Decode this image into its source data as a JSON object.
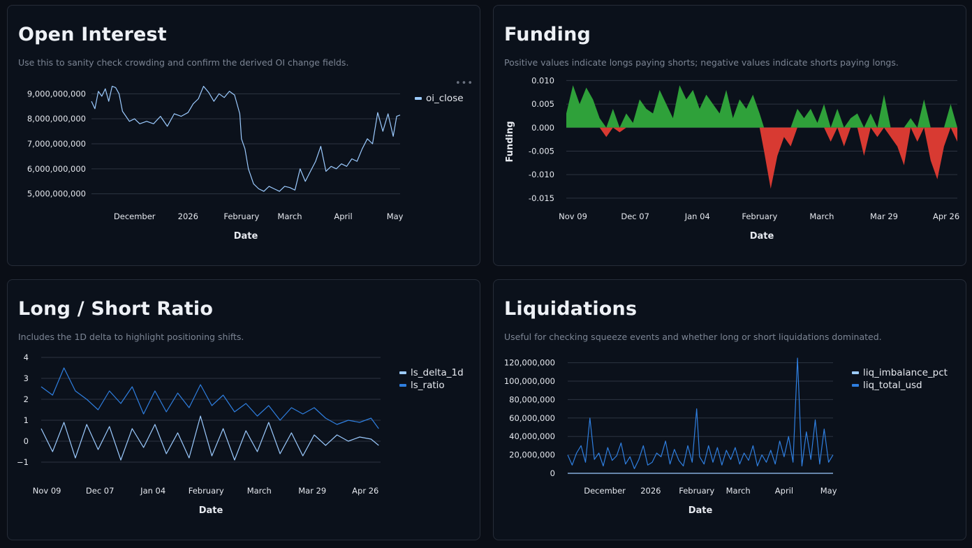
{
  "colors": {
    "background": "#0a0e16",
    "panel": "#0b111b",
    "grid": "#2d3441",
    "line_light": "#9ccbff",
    "line_blue": "#2f7fe0",
    "funding_pos": "#2fa13a",
    "funding_neg": "#d83a32"
  },
  "panels": {
    "oi": {
      "title": "Open Interest",
      "subtitle": "Use this to sanity check crowding and confirm the derived OI change fields.",
      "menu": "•••"
    },
    "funding": {
      "title": "Funding",
      "subtitle": "Positive values indicate longs paying shorts; negative values indicate shorts paying longs."
    },
    "ls": {
      "title": "Long / Short Ratio",
      "subtitle": "Includes the 1D delta to highlight positioning shifts."
    },
    "liq": {
      "title": "Liquidations",
      "subtitle": "Useful for checking squeeze events and whether long or short liquidations dominated."
    }
  },
  "chart_data": [
    {
      "id": "oi",
      "type": "line",
      "title": "",
      "xlabel": "Date",
      "ylabel": "",
      "x_range": [
        "2025-11-06",
        "2026-05-04"
      ],
      "ylim": [
        4600000000,
        9400000000
      ],
      "grid": "horizontal",
      "legend_position": "right",
      "yticks": [
        {
          "v": 5000000000,
          "label": "5,000,000,000"
        },
        {
          "v": 6000000000,
          "label": "6,000,000,000"
        },
        {
          "v": 7000000000,
          "label": "7,000,000,000"
        },
        {
          "v": 8000000000,
          "label": "8,000,000,000"
        },
        {
          "v": 9000000000,
          "label": "9,000,000,000"
        }
      ],
      "xticks": [
        {
          "date": "2025-12-01",
          "label": "December"
        },
        {
          "date": "2026-01-01",
          "label": "2026"
        },
        {
          "date": "2026-02-01",
          "label": "February"
        },
        {
          "date": "2026-03-01",
          "label": "March"
        },
        {
          "date": "2026-04-01",
          "label": "April"
        },
        {
          "date": "2026-05-01",
          "label": "May"
        }
      ],
      "series": [
        {
          "name": "oi_close",
          "color": "#9ccbff",
          "dates": [
            "2025-11-06",
            "2025-11-08",
            "2025-11-10",
            "2025-11-12",
            "2025-11-14",
            "2025-11-16",
            "2025-11-18",
            "2025-11-20",
            "2025-11-22",
            "2025-11-24",
            "2025-11-26",
            "2025-11-28",
            "2025-12-01",
            "2025-12-04",
            "2025-12-08",
            "2025-12-12",
            "2025-12-16",
            "2025-12-20",
            "2025-12-24",
            "2025-12-28",
            "2026-01-01",
            "2026-01-04",
            "2026-01-07",
            "2026-01-10",
            "2026-01-13",
            "2026-01-16",
            "2026-01-19",
            "2026-01-22",
            "2026-01-25",
            "2026-01-28",
            "2026-01-31",
            "2026-02-01",
            "2026-02-03",
            "2026-02-05",
            "2026-02-08",
            "2026-02-11",
            "2026-02-14",
            "2026-02-17",
            "2026-02-20",
            "2026-02-23",
            "2026-02-26",
            "2026-03-01",
            "2026-03-04",
            "2026-03-07",
            "2026-03-10",
            "2026-03-13",
            "2026-03-16",
            "2026-03-19",
            "2026-03-22",
            "2026-03-25",
            "2026-03-28",
            "2026-03-31",
            "2026-04-03",
            "2026-04-06",
            "2026-04-09",
            "2026-04-12",
            "2026-04-15",
            "2026-04-18",
            "2026-04-21",
            "2026-04-24",
            "2026-04-27",
            "2026-04-30",
            "2026-05-02",
            "2026-05-04"
          ],
          "values": [
            8700000000,
            8400000000,
            9100000000,
            8900000000,
            9200000000,
            8700000000,
            9300000000,
            9250000000,
            9000000000,
            8300000000,
            8100000000,
            7900000000,
            8000000000,
            7800000000,
            7900000000,
            7800000000,
            8100000000,
            7700000000,
            8200000000,
            8100000000,
            8250000000,
            8600000000,
            8800000000,
            9300000000,
            9050000000,
            8700000000,
            9000000000,
            8850000000,
            9100000000,
            8950000000,
            8200000000,
            7200000000,
            6800000000,
            6000000000,
            5400000000,
            5200000000,
            5100000000,
            5300000000,
            5200000000,
            5100000000,
            5300000000,
            5250000000,
            5150000000,
            6000000000,
            5500000000,
            5900000000,
            6300000000,
            6900000000,
            5900000000,
            6100000000,
            6000000000,
            6200000000,
            6100000000,
            6400000000,
            6300000000,
            6800000000,
            7200000000,
            7000000000,
            8250000000,
            7500000000,
            8200000000,
            7300000000,
            8100000000,
            8150000000
          ]
        }
      ]
    },
    {
      "id": "funding",
      "type": "area",
      "title": "",
      "xlabel": "Date",
      "ylabel": "Funding",
      "x_range": [
        "2025-11-06",
        "2026-05-01"
      ],
      "ylim": [
        -0.0165,
        0.0105
      ],
      "grid": "horizontal",
      "yticks": [
        {
          "v": -0.015,
          "label": "-0.015"
        },
        {
          "v": -0.01,
          "label": "-0.010"
        },
        {
          "v": -0.005,
          "label": "-0.005"
        },
        {
          "v": 0,
          "label": "0.000"
        },
        {
          "v": 0.005,
          "label": "0.005"
        },
        {
          "v": 0.01,
          "label": "0.010"
        }
      ],
      "xticks": [
        {
          "date": "2025-11-09",
          "label": "Nov 09"
        },
        {
          "date": "2025-12-07",
          "label": "Dec 07"
        },
        {
          "date": "2026-01-04",
          "label": "Jan 04"
        },
        {
          "date": "2026-02-01",
          "label": "February"
        },
        {
          "date": "2026-03-01",
          "label": "March"
        },
        {
          "date": "2026-03-29",
          "label": "Mar 29"
        },
        {
          "date": "2026-04-26",
          "label": "Apr 26"
        }
      ],
      "series": [
        {
          "name": "funding",
          "dates": [
            "2025-11-06",
            "2025-11-09",
            "2025-11-12",
            "2025-11-15",
            "2025-11-18",
            "2025-11-21",
            "2025-11-24",
            "2025-11-27",
            "2025-11-30",
            "2025-12-03",
            "2025-12-06",
            "2025-12-09",
            "2025-12-12",
            "2025-12-15",
            "2025-12-18",
            "2025-12-21",
            "2025-12-24",
            "2025-12-27",
            "2025-12-30",
            "2026-01-02",
            "2026-01-05",
            "2026-01-08",
            "2026-01-11",
            "2026-01-14",
            "2026-01-17",
            "2026-01-20",
            "2026-01-23",
            "2026-01-26",
            "2026-01-29",
            "2026-02-01",
            "2026-02-03",
            "2026-02-06",
            "2026-02-09",
            "2026-02-12",
            "2026-02-15",
            "2026-02-18",
            "2026-02-21",
            "2026-02-24",
            "2026-02-27",
            "2026-03-02",
            "2026-03-05",
            "2026-03-08",
            "2026-03-11",
            "2026-03-14",
            "2026-03-17",
            "2026-03-20",
            "2026-03-23",
            "2026-03-26",
            "2026-03-29",
            "2026-04-01",
            "2026-04-04",
            "2026-04-07",
            "2026-04-10",
            "2026-04-13",
            "2026-04-16",
            "2026-04-19",
            "2026-04-22",
            "2026-04-25",
            "2026-04-28",
            "2026-05-01"
          ],
          "values": [
            0.003,
            0.009,
            0.005,
            0.0085,
            0.006,
            0.002,
            -0.002,
            0.004,
            -0.001,
            0.003,
            0.001,
            0.006,
            0.004,
            0.003,
            0.008,
            0.005,
            0.002,
            0.009,
            0.006,
            0.008,
            0.004,
            0.007,
            0.005,
            0.003,
            0.008,
            0.002,
            0.006,
            0.004,
            0.007,
            0.003,
            -0.005,
            -0.013,
            -0.006,
            -0.002,
            -0.004,
            0.004,
            0.002,
            0.004,
            0.001,
            0.005,
            -0.003,
            0.004,
            -0.004,
            0.002,
            0.003,
            -0.006,
            0.003,
            -0.002,
            0.007,
            -0.002,
            -0.004,
            -0.008,
            0.002,
            -0.003,
            0.006,
            -0.007,
            -0.011,
            -0.004,
            0.005,
            -0.003
          ]
        }
      ]
    },
    {
      "id": "ls",
      "type": "line",
      "title": "",
      "xlabel": "Date",
      "ylabel": "",
      "x_range": [
        "2025-11-06",
        "2026-05-04"
      ],
      "ylim": [
        -1.4,
        4.3
      ],
      "grid": "horizontal",
      "legend_position": "right",
      "yticks": [
        {
          "v": -1,
          "label": "−1"
        },
        {
          "v": 0,
          "label": "0"
        },
        {
          "v": 1,
          "label": "1"
        },
        {
          "v": 2,
          "label": "2"
        },
        {
          "v": 3,
          "label": "3"
        },
        {
          "v": 4,
          "label": "4"
        }
      ],
      "xticks": [
        {
          "date": "2025-11-09",
          "label": "Nov 09"
        },
        {
          "date": "2025-12-07",
          "label": "Dec 07"
        },
        {
          "date": "2026-01-04",
          "label": "Jan 04"
        },
        {
          "date": "2026-02-01",
          "label": "February"
        },
        {
          "date": "2026-03-01",
          "label": "March"
        },
        {
          "date": "2026-03-29",
          "label": "Mar 29"
        },
        {
          "date": "2026-04-26",
          "label": "Apr 26"
        }
      ],
      "series": [
        {
          "name": "ls_delta_1d",
          "color": "#9ccbff",
          "dates": [
            "2025-11-06",
            "2025-11-12",
            "2025-11-18",
            "2025-11-24",
            "2025-11-30",
            "2025-12-06",
            "2025-12-12",
            "2025-12-18",
            "2025-12-24",
            "2025-12-30",
            "2026-01-05",
            "2026-01-11",
            "2026-01-17",
            "2026-01-23",
            "2026-01-29",
            "2026-02-04",
            "2026-02-10",
            "2026-02-16",
            "2026-02-22",
            "2026-02-28",
            "2026-03-06",
            "2026-03-12",
            "2026-03-18",
            "2026-03-24",
            "2026-03-30",
            "2026-04-05",
            "2026-04-11",
            "2026-04-17",
            "2026-04-23",
            "2026-04-29",
            "2026-05-03"
          ],
          "values": [
            0.6,
            -0.5,
            0.9,
            -0.8,
            0.8,
            -0.4,
            0.7,
            -0.9,
            0.6,
            -0.3,
            0.8,
            -0.6,
            0.4,
            -0.8,
            1.2,
            -0.7,
            0.6,
            -0.9,
            0.5,
            -0.5,
            0.9,
            -0.6,
            0.4,
            -0.7,
            0.3,
            -0.2,
            0.3,
            0.0,
            0.2,
            0.1,
            -0.2
          ]
        },
        {
          "name": "ls_ratio",
          "color": "#2f7fe0",
          "dates": [
            "2025-11-06",
            "2025-11-12",
            "2025-11-18",
            "2025-11-24",
            "2025-11-30",
            "2025-12-06",
            "2025-12-12",
            "2025-12-18",
            "2025-12-24",
            "2025-12-30",
            "2026-01-05",
            "2026-01-11",
            "2026-01-17",
            "2026-01-23",
            "2026-01-29",
            "2026-02-04",
            "2026-02-10",
            "2026-02-16",
            "2026-02-22",
            "2026-02-28",
            "2026-03-06",
            "2026-03-12",
            "2026-03-18",
            "2026-03-24",
            "2026-03-30",
            "2026-04-05",
            "2026-04-11",
            "2026-04-17",
            "2026-04-23",
            "2026-04-29",
            "2026-05-03"
          ],
          "values": [
            2.6,
            2.2,
            3.5,
            2.4,
            2.0,
            1.5,
            2.4,
            1.8,
            2.6,
            1.3,
            2.4,
            1.4,
            2.3,
            1.6,
            2.7,
            1.7,
            2.2,
            1.4,
            1.8,
            1.2,
            1.7,
            1.0,
            1.6,
            1.3,
            1.6,
            1.1,
            0.8,
            1.0,
            0.9,
            1.1,
            0.6
          ]
        }
      ]
    },
    {
      "id": "liq",
      "type": "line",
      "title": "",
      "xlabel": "Date",
      "ylabel": "",
      "x_range": [
        "2025-11-06",
        "2026-05-04"
      ],
      "ylim": [
        -3000000,
        128000000
      ],
      "grid": "horizontal",
      "legend_position": "right",
      "yticks": [
        {
          "v": 0,
          "label": "0"
        },
        {
          "v": 20000000,
          "label": "20,000,000"
        },
        {
          "v": 40000000,
          "label": "40,000,000"
        },
        {
          "v": 60000000,
          "label": "60,000,000"
        },
        {
          "v": 80000000,
          "label": "80,000,000"
        },
        {
          "v": 100000000,
          "label": "100,000,000"
        },
        {
          "v": 120000000,
          "label": "120,000,000"
        }
      ],
      "xticks": [
        {
          "date": "2025-12-01",
          "label": "December"
        },
        {
          "date": "2026-01-01",
          "label": "2026"
        },
        {
          "date": "2026-02-01",
          "label": "February"
        },
        {
          "date": "2026-03-01",
          "label": "March"
        },
        {
          "date": "2026-04-01",
          "label": "April"
        },
        {
          "date": "2026-05-01",
          "label": "May"
        }
      ],
      "series": [
        {
          "name": "liq_imbalance_pct",
          "color": "#9ccbff",
          "dates": [
            "2025-11-06",
            "2026-05-04"
          ],
          "values": [
            0,
            0
          ]
        },
        {
          "name": "liq_total_usd",
          "color": "#2f7fe0",
          "dates": [
            "2025-11-06",
            "2025-11-09",
            "2025-11-12",
            "2025-11-15",
            "2025-11-18",
            "2025-11-21",
            "2025-11-24",
            "2025-11-27",
            "2025-11-30",
            "2025-12-03",
            "2025-12-06",
            "2025-12-09",
            "2025-12-12",
            "2025-12-15",
            "2025-12-18",
            "2025-12-21",
            "2025-12-24",
            "2025-12-27",
            "2025-12-30",
            "2026-01-02",
            "2026-01-05",
            "2026-01-08",
            "2026-01-11",
            "2026-01-14",
            "2026-01-17",
            "2026-01-20",
            "2026-01-23",
            "2026-01-26",
            "2026-01-29",
            "2026-02-01",
            "2026-02-03",
            "2026-02-06",
            "2026-02-09",
            "2026-02-12",
            "2026-02-15",
            "2026-02-18",
            "2026-02-21",
            "2026-02-24",
            "2026-02-27",
            "2026-03-02",
            "2026-03-05",
            "2026-03-08",
            "2026-03-11",
            "2026-03-14",
            "2026-03-17",
            "2026-03-20",
            "2026-03-23",
            "2026-03-26",
            "2026-03-29",
            "2026-04-01",
            "2026-04-04",
            "2026-04-07",
            "2026-04-10",
            "2026-04-13",
            "2026-04-16",
            "2026-04-19",
            "2026-04-22",
            "2026-04-25",
            "2026-04-28",
            "2026-05-01",
            "2026-05-04"
          ],
          "values": [
            20000000,
            9000000,
            22000000,
            30000000,
            12000000,
            60000000,
            15000000,
            22000000,
            8000000,
            28000000,
            14000000,
            19000000,
            33000000,
            10000000,
            18000000,
            5000000,
            15000000,
            30000000,
            9000000,
            12000000,
            22000000,
            18000000,
            35000000,
            10000000,
            26000000,
            14000000,
            8000000,
            30000000,
            12000000,
            70000000,
            18000000,
            10000000,
            30000000,
            12000000,
            28000000,
            9000000,
            25000000,
            15000000,
            28000000,
            10000000,
            22000000,
            14000000,
            30000000,
            8000000,
            20000000,
            12000000,
            25000000,
            10000000,
            35000000,
            18000000,
            40000000,
            12000000,
            125000000,
            8000000,
            45000000,
            15000000,
            58000000,
            10000000,
            48000000,
            12000000,
            20000000
          ]
        }
      ]
    }
  ]
}
